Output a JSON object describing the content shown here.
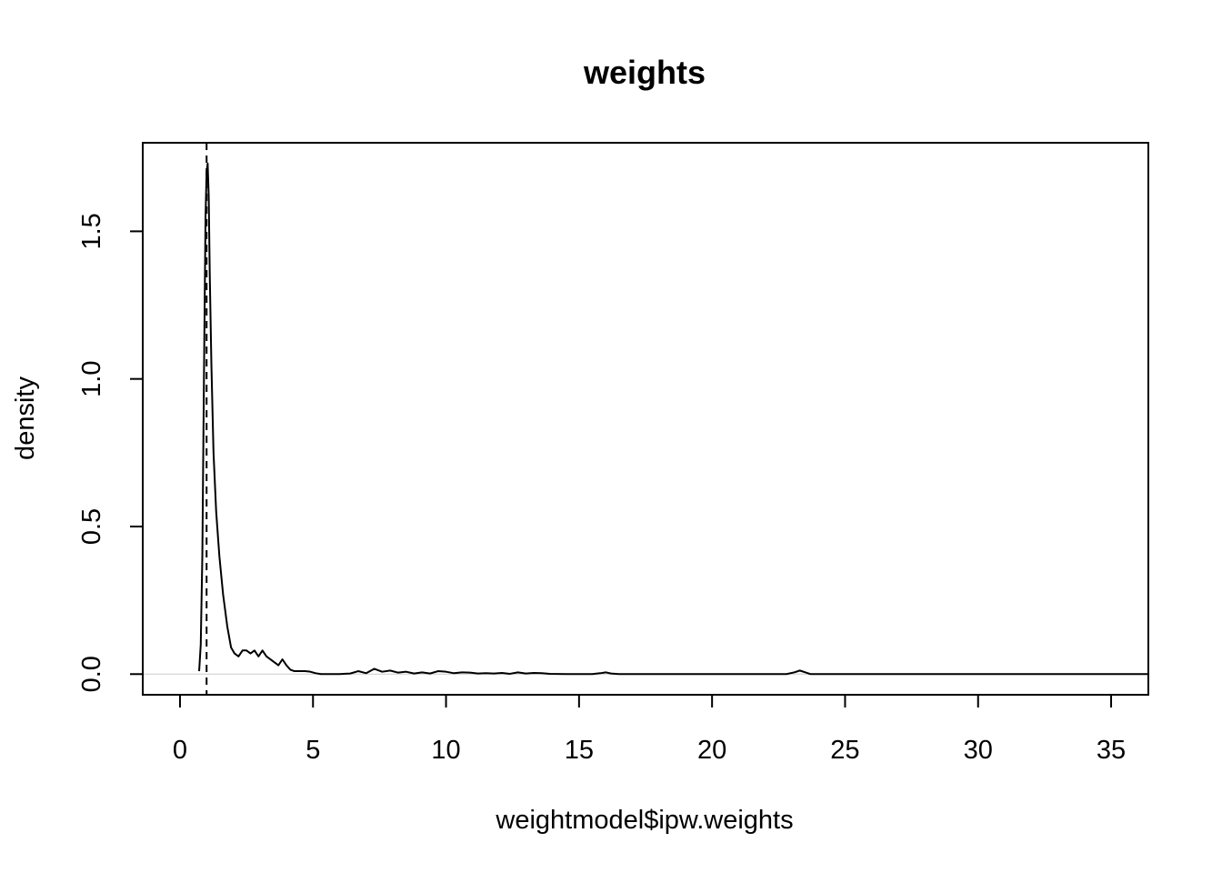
{
  "chart_data": {
    "type": "line",
    "title": "weights",
    "xlabel": "weightmodel$ipw.weights",
    "ylabel": "density",
    "xlim": [
      -1.4,
      36.4
    ],
    "ylim": [
      -0.07,
      1.8
    ],
    "xticks": [
      0,
      5,
      10,
      15,
      20,
      25,
      30,
      35
    ],
    "xtick_labels": [
      "0",
      "5",
      "10",
      "15",
      "20",
      "25",
      "30",
      "35"
    ],
    "yticks": [
      0.0,
      0.5,
      1.0,
      1.5
    ],
    "ytick_labels": [
      "0.0",
      "0.5",
      "1.0",
      "1.5"
    ],
    "grid": false,
    "reference_lines": [
      {
        "orientation": "vertical",
        "x": 1.0,
        "style": "dashed",
        "color": "#000000"
      },
      {
        "orientation": "horizontal",
        "y": 0.0,
        "style": "solid",
        "color": "#cccccc"
      }
    ],
    "series": [
      {
        "color": "#000000",
        "x": [
          0.72,
          0.78,
          0.84,
          0.9,
          0.96,
          1.0,
          1.04,
          1.08,
          1.12,
          1.18,
          1.26,
          1.36,
          1.48,
          1.62,
          1.78,
          1.92,
          2.05,
          2.2,
          2.35,
          2.5,
          2.65,
          2.8,
          2.95,
          3.1,
          3.25,
          3.4,
          3.55,
          3.7,
          3.85,
          4.0,
          4.15,
          4.3,
          4.5,
          4.7,
          4.9,
          5.1,
          5.3,
          5.6,
          6.0,
          6.4,
          6.7,
          7.0,
          7.3,
          7.6,
          7.9,
          8.2,
          8.5,
          8.8,
          9.1,
          9.4,
          9.7,
          10.0,
          10.3,
          10.6,
          10.9,
          11.2,
          11.5,
          11.8,
          12.1,
          12.4,
          12.7,
          13.0,
          13.3,
          13.6,
          13.9,
          14.5,
          15.0,
          15.5,
          15.8,
          16.0,
          16.2,
          16.5,
          17.0,
          18.0,
          19.0,
          20.0,
          21.0,
          22.0,
          22.8,
          23.1,
          23.3,
          23.5,
          23.7,
          24.0,
          25.0,
          26.0,
          27.0,
          28.0,
          29.0,
          30.0,
          31.0,
          32.0,
          33.0,
          34.0,
          35.0,
          36.4
        ],
        "y": [
          0.01,
          0.1,
          0.4,
          1.0,
          1.55,
          1.7,
          1.73,
          1.62,
          1.35,
          1.05,
          0.75,
          0.55,
          0.4,
          0.27,
          0.16,
          0.09,
          0.07,
          0.06,
          0.08,
          0.08,
          0.07,
          0.08,
          0.06,
          0.08,
          0.06,
          0.05,
          0.04,
          0.03,
          0.05,
          0.03,
          0.015,
          0.01,
          0.01,
          0.01,
          0.008,
          0.003,
          0.0,
          0.0,
          0.0,
          0.002,
          0.01,
          0.003,
          0.018,
          0.008,
          0.012,
          0.005,
          0.008,
          0.002,
          0.006,
          0.002,
          0.01,
          0.008,
          0.003,
          0.006,
          0.005,
          0.002,
          0.003,
          0.002,
          0.004,
          0.001,
          0.006,
          0.002,
          0.004,
          0.003,
          0.001,
          0.0,
          0.0,
          0.0,
          0.003,
          0.006,
          0.002,
          0.0,
          0.0,
          0.0,
          0.0,
          0.0,
          0.0,
          0.0,
          0.0,
          0.006,
          0.012,
          0.006,
          0.0,
          0.0,
          0.0,
          0.0,
          0.0,
          0.0,
          0.0,
          0.0,
          0.0,
          0.0,
          0.0,
          0.0,
          0.0,
          0.0
        ]
      }
    ]
  }
}
